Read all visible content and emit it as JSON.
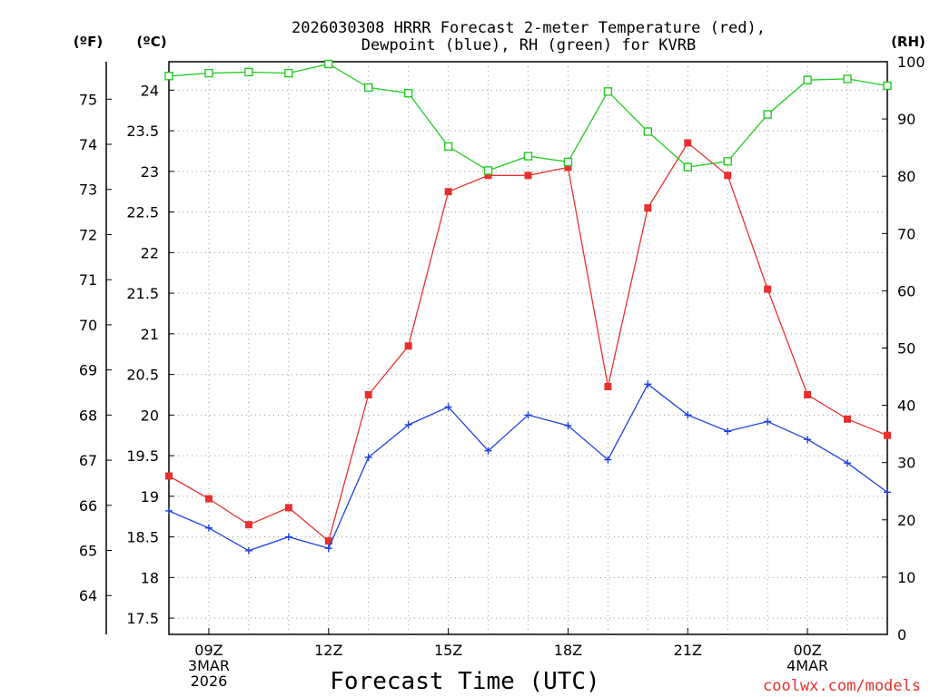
{
  "chart_data": {
    "type": "line",
    "title_line1": "2026030308 HRRR Forecast 2-meter Temperature (red),",
    "title_line2": "Dewpoint (blue), RH (green) for KVRB",
    "xlabel": "Forecast Time (UTC)",
    "credit": "coolwx.com/models",
    "units": {
      "fahrenheit": "(ºF)",
      "celsius": "(ºC)",
      "rh": "(RH)"
    },
    "x_hours": [
      8,
      9,
      10,
      11,
      12,
      13,
      14,
      15,
      16,
      17,
      18,
      19,
      20,
      21,
      22,
      23,
      24,
      25,
      26
    ],
    "xlim": [
      8,
      26
    ],
    "x_ticks": [
      {
        "hour": 9,
        "lines": [
          "09Z",
          "3MAR",
          "2026"
        ]
      },
      {
        "hour": 12,
        "lines": [
          "12Z"
        ]
      },
      {
        "hour": 15,
        "lines": [
          "15Z"
        ]
      },
      {
        "hour": 18,
        "lines": [
          "18Z"
        ]
      },
      {
        "hour": 21,
        "lines": [
          "21Z"
        ]
      },
      {
        "hour": 24,
        "lines": [
          "00Z",
          "4MAR"
        ]
      }
    ],
    "celsius_axis": {
      "range": [
        17.3,
        24.35
      ],
      "ticks": [
        "17.5",
        "18",
        "18.5",
        "19",
        "19.5",
        "20",
        "20.5",
        "21",
        "21.5",
        "22",
        "22.5",
        "23",
        "23.5",
        "24"
      ]
    },
    "fahrenheit_axis": {
      "ticks": [
        "64",
        "65",
        "66",
        "67",
        "68",
        "69",
        "70",
        "71",
        "72",
        "73",
        "74",
        "75"
      ]
    },
    "rh_axis": {
      "range": [
        0,
        100
      ],
      "ticks": [
        "0",
        "10",
        "20",
        "30",
        "40",
        "50",
        "60",
        "70",
        "80",
        "90",
        "100"
      ]
    },
    "series": [
      {
        "name": "Temperature",
        "axis": "celsius",
        "color": "#e8312f",
        "marker": "filled-square",
        "values": [
          19.25,
          18.97,
          18.65,
          18.86,
          18.45,
          20.25,
          20.85,
          22.75,
          22.95,
          22.95,
          23.05,
          20.35,
          22.55,
          23.35,
          22.95,
          21.55,
          20.25,
          19.95,
          19.75
        ]
      },
      {
        "name": "Dewpoint",
        "axis": "celsius",
        "color": "#1f3fe0",
        "marker": "plus",
        "values": [
          18.82,
          18.61,
          18.33,
          18.5,
          18.36,
          19.48,
          19.88,
          20.1,
          19.56,
          20.0,
          19.87,
          19.45,
          20.38,
          20.0,
          19.8,
          19.92,
          19.7,
          19.41,
          19.05
        ]
      },
      {
        "name": "RH",
        "axis": "rh",
        "color": "#22cc22",
        "marker": "open-square",
        "values": [
          97.5,
          98.0,
          98.2,
          98.0,
          99.6,
          95.5,
          94.5,
          85.2,
          81.0,
          83.5,
          82.5,
          94.8,
          87.8,
          81.6,
          82.6,
          90.8,
          96.8,
          97.0,
          95.8
        ]
      }
    ]
  }
}
